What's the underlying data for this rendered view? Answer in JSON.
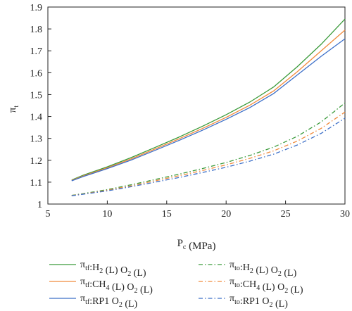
{
  "chart_data": {
    "type": "line",
    "xlabel": {
      "main": "P",
      "sub": "c",
      "rest": " (MPa)"
    },
    "ylabel": {
      "main": "π",
      "sub": "t"
    },
    "xlim": [
      5,
      30
    ],
    "ylim": [
      1,
      1.9
    ],
    "xticks": [
      5,
      10,
      15,
      20,
      25,
      30
    ],
    "yticks": [
      1,
      1.1,
      1.2,
      1.3,
      1.4,
      1.5,
      1.6,
      1.7,
      1.8,
      1.9
    ],
    "grid": false,
    "legend_position": "bottom",
    "x": [
      7,
      8,
      10,
      12,
      14,
      16,
      18,
      20,
      22,
      24,
      26,
      28,
      30
    ],
    "series": [
      {
        "key": "tf_h2",
        "label_parts": [
          [
            "π",
            ""
          ],
          [
            "tf",
            "sub"
          ],
          [
            ":H",
            ""
          ],
          [
            "2",
            "sub"
          ],
          [
            " (L) O",
            ""
          ],
          [
            "2",
            "sub"
          ],
          [
            " (L)",
            ""
          ]
        ],
        "color": "#3a9a3a",
        "dash": "solid",
        "values": [
          1.11,
          1.132,
          1.17,
          1.212,
          1.258,
          1.305,
          1.355,
          1.408,
          1.466,
          1.535,
          1.628,
          1.73,
          1.845
        ]
      },
      {
        "key": "tf_ch4",
        "label_parts": [
          [
            "π",
            ""
          ],
          [
            "tf",
            "sub"
          ],
          [
            ":CH",
            ""
          ],
          [
            "4",
            "sub"
          ],
          [
            " (L) O",
            ""
          ],
          [
            "2",
            "sub"
          ],
          [
            " (L)",
            ""
          ]
        ],
        "color": "#f08a3c",
        "dash": "solid",
        "values": [
          1.108,
          1.129,
          1.166,
          1.206,
          1.251,
          1.297,
          1.345,
          1.396,
          1.452,
          1.517,
          1.605,
          1.7,
          1.795
        ]
      },
      {
        "key": "tf_rp1",
        "label_parts": [
          [
            "π",
            ""
          ],
          [
            "tf",
            "sub"
          ],
          [
            ":RP1 O",
            ""
          ],
          [
            "2",
            "sub"
          ],
          [
            " (L)",
            ""
          ]
        ],
        "color": "#3c6fc8",
        "dash": "solid",
        "values": [
          1.106,
          1.126,
          1.162,
          1.201,
          1.245,
          1.29,
          1.337,
          1.387,
          1.441,
          1.505,
          1.59,
          1.675,
          1.755
        ]
      },
      {
        "key": "to_h2",
        "label_parts": [
          [
            "π",
            ""
          ],
          [
            "to",
            "sub"
          ],
          [
            ":H",
            ""
          ],
          [
            "2",
            "sub"
          ],
          [
            " (L) O",
            ""
          ],
          [
            "2",
            "sub"
          ],
          [
            " (L)",
            ""
          ]
        ],
        "color": "#3a9a3a",
        "dash": "dashdot",
        "values": [
          1.04,
          1.048,
          1.066,
          1.088,
          1.112,
          1.136,
          1.162,
          1.19,
          1.222,
          1.26,
          1.31,
          1.375,
          1.462
        ]
      },
      {
        "key": "to_ch4",
        "label_parts": [
          [
            "π",
            ""
          ],
          [
            "to",
            "sub"
          ],
          [
            ":CH",
            ""
          ],
          [
            "4",
            "sub"
          ],
          [
            " (L) O",
            ""
          ],
          [
            "2",
            "sub"
          ],
          [
            " (L)",
            ""
          ]
        ],
        "color": "#f08a3c",
        "dash": "dashdot",
        "values": [
          1.039,
          1.046,
          1.063,
          1.083,
          1.106,
          1.129,
          1.153,
          1.179,
          1.209,
          1.243,
          1.288,
          1.346,
          1.42
        ]
      },
      {
        "key": "to_rp1",
        "label_parts": [
          [
            "π",
            ""
          ],
          [
            "to",
            "sub"
          ],
          [
            ":RP1 O",
            ""
          ],
          [
            "2",
            "sub"
          ],
          [
            " (L)",
            ""
          ]
        ],
        "color": "#3c6fc8",
        "dash": "dashdot",
        "values": [
          1.038,
          1.045,
          1.06,
          1.079,
          1.1,
          1.121,
          1.144,
          1.168,
          1.196,
          1.228,
          1.27,
          1.323,
          1.392
        ]
      }
    ]
  }
}
